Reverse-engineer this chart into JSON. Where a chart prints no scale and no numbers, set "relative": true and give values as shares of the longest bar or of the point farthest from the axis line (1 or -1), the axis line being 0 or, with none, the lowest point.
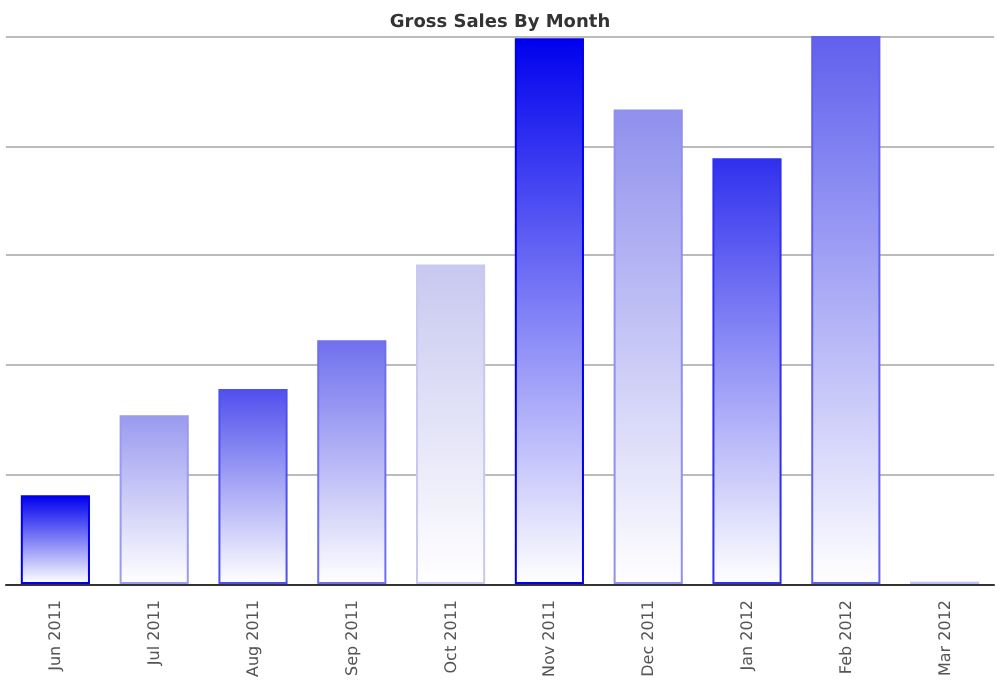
{
  "chart_data": {
    "type": "bar",
    "title": "Gross Sales By Month",
    "relative": true,
    "grid": "y",
    "categories": [
      "Jun 2011",
      "Jul 2011",
      "Aug 2011",
      "Sep 2011",
      "Oct 2011",
      "Nov 2011",
      "Dec 2011",
      "Jan 2012",
      "Feb 2012",
      "Mar 2012"
    ],
    "values": [
      0.162,
      0.308,
      0.356,
      0.445,
      0.583,
      0.996,
      0.866,
      0.777,
      1,
      0.004
    ],
    "colors": [
      "#0000ee",
      "#9a9af0",
      "#5050ee",
      "#7070ee",
      "#c8c8f0",
      "#0000ee",
      "#9090ee",
      "#3030ee",
      "#6060ee",
      "#c0c0f0"
    ]
  }
}
